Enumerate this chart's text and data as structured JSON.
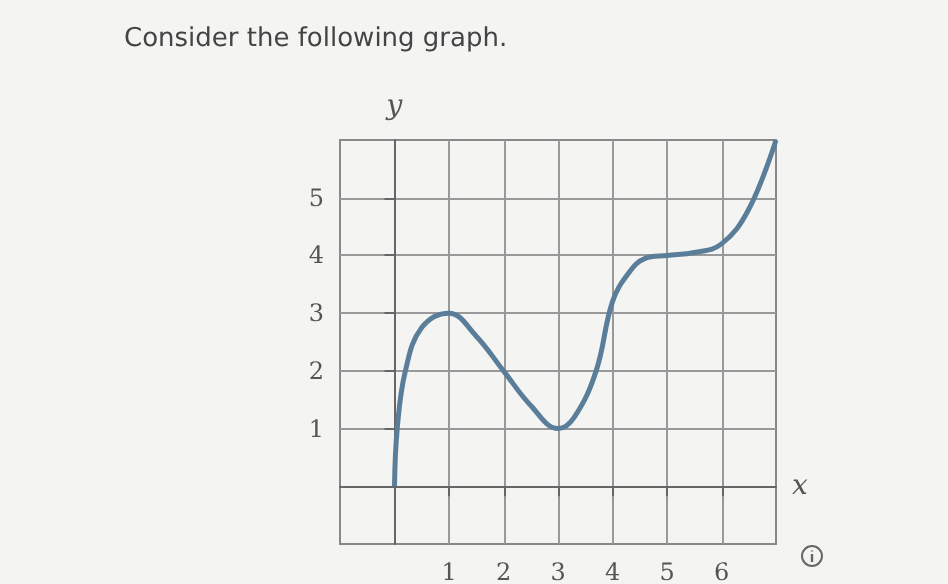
{
  "chart_data": {
    "type": "line",
    "title": "Consider the following graph.",
    "xlabel": "x",
    "ylabel": "y",
    "x": [
      0,
      0.05,
      0.2,
      0.5,
      1,
      1.5,
      2,
      2.5,
      3,
      3.3,
      3.7,
      4,
      4.3,
      4.6,
      5,
      5.5,
      6,
      6.5,
      7
    ],
    "series": [
      {
        "color": "#5a7d9a",
        "values": [
          0,
          1,
          2,
          2.75,
          3,
          2.6,
          2,
          1.4,
          1,
          1.2,
          2,
          3.2,
          3.7,
          3.95,
          4,
          4.05,
          4.2,
          4.8,
          6
        ]
      }
    ],
    "xlim": [
      -1,
      7
    ],
    "ylim": [
      -1,
      6
    ],
    "xticks": [
      1,
      2,
      3,
      4,
      5,
      6
    ],
    "yticks": [
      1,
      2,
      3,
      4,
      5
    ],
    "grid": true,
    "marker": "none",
    "line_style": "solid"
  }
}
